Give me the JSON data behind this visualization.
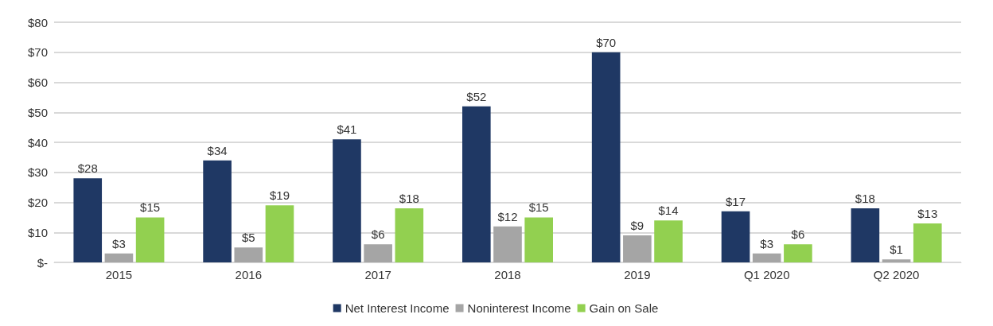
{
  "chart_data": {
    "type": "bar",
    "categories": [
      "2015",
      "2016",
      "2017",
      "2018",
      "2019",
      "Q1 2020",
      "Q2 2020"
    ],
    "series": [
      {
        "name": "Net Interest Income",
        "color": "#1f3864",
        "values": [
          28,
          34,
          41,
          52,
          70,
          17,
          18
        ],
        "value_labels": [
          "$28",
          "$34",
          "$41",
          "$52",
          "$70",
          "$17",
          "$18"
        ]
      },
      {
        "name": "Noninterest Income",
        "color": "#a5a5a5",
        "values": [
          3,
          5,
          6,
          12,
          9,
          3,
          1
        ],
        "value_labels": [
          "$3",
          "$5",
          "$6",
          "$12",
          "$9",
          "$3",
          "$1"
        ]
      },
      {
        "name": "Gain on Sale",
        "color": "#92d050",
        "values": [
          15,
          19,
          18,
          15,
          14,
          6,
          13
        ],
        "value_labels": [
          "$15",
          "$19",
          "$18",
          "$15",
          "$14",
          "$6",
          "$13"
        ]
      }
    ],
    "ylim": [
      0,
      80
    ],
    "yticks": [
      {
        "value": 0,
        "label": "$-"
      },
      {
        "value": 10,
        "label": "$10"
      },
      {
        "value": 20,
        "label": "$20"
      },
      {
        "value": 30,
        "label": "$30"
      },
      {
        "value": 40,
        "label": "$40"
      },
      {
        "value": 50,
        "label": "$50"
      },
      {
        "value": 60,
        "label": "$60"
      },
      {
        "value": 70,
        "label": "$70"
      },
      {
        "value": 80,
        "label": "$80"
      }
    ],
    "grid": "y",
    "legend": "bottom"
  }
}
